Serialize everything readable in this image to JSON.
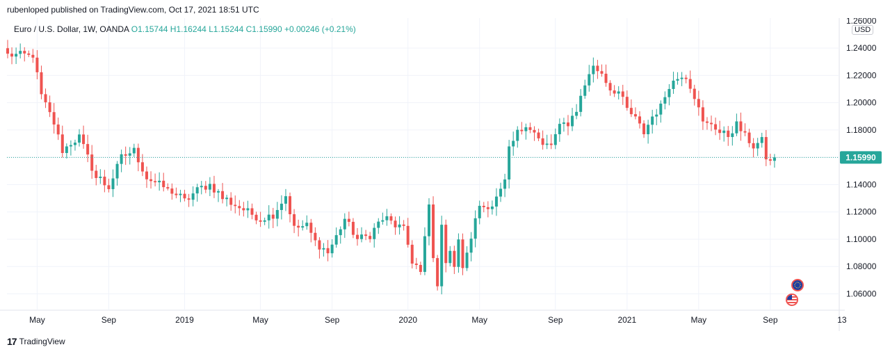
{
  "header": {
    "published": "rubenloped published on TradingView.com, Oct 17, 2021 18:51 UTC"
  },
  "legend": {
    "symbol": "Euro / U.S. Dollar, 1W, OANDA",
    "open": "O1.15744",
    "high": "H1.16244",
    "low": "L1.15244",
    "close": "C1.15990",
    "change": "+0.00246 (+0.21%)"
  },
  "price_axis": {
    "currency": "USD",
    "current_price": "1.15990",
    "top_label": "1.26000"
  },
  "footer": {
    "brand": "TradingView",
    "logo": "17"
  },
  "colors": {
    "up": "#26a69a",
    "down": "#ef5350",
    "price_line": "#26a69a",
    "grid": "#f0f3fa"
  },
  "chart_data": {
    "type": "candlestick",
    "timeframe": "1W",
    "y_ticks": [
      "1.24000",
      "1.22000",
      "1.20000",
      "1.18000",
      "1.16000",
      "1.14000",
      "1.12000",
      "1.10000",
      "1.08000",
      "1.06000"
    ],
    "x_ticks": [
      "May",
      "Sep",
      "2019",
      "May",
      "Sep",
      "2020",
      "May",
      "Sep",
      "2021",
      "May",
      "Sep",
      "13"
    ],
    "ylim": [
      1.048,
      1.262
    ],
    "anchors": [
      [
        0,
        1.235
      ],
      [
        6,
        1.235
      ],
      [
        8,
        1.205
      ],
      [
        11,
        1.185
      ],
      [
        13,
        1.165
      ],
      [
        17,
        1.175
      ],
      [
        19,
        1.16
      ],
      [
        21,
        1.145
      ],
      [
        24,
        1.138
      ],
      [
        27,
        1.16
      ],
      [
        30,
        1.165
      ],
      [
        33,
        1.145
      ],
      [
        36,
        1.14
      ],
      [
        39,
        1.135
      ],
      [
        42,
        1.128
      ],
      [
        45,
        1.136
      ],
      [
        48,
        1.14
      ],
      [
        51,
        1.13
      ],
      [
        54,
        1.125
      ],
      [
        57,
        1.12
      ],
      [
        60,
        1.115
      ],
      [
        63,
        1.118
      ],
      [
        66,
        1.132
      ],
      [
        68,
        1.108
      ],
      [
        71,
        1.11
      ],
      [
        73,
        1.098
      ],
      [
        76,
        1.09
      ],
      [
        78,
        1.102
      ],
      [
        80,
        1.115
      ],
      [
        83,
        1.1
      ],
      [
        86,
        1.103
      ],
      [
        88,
        1.112
      ],
      [
        90,
        1.115
      ],
      [
        92,
        1.11
      ],
      [
        94,
        1.108
      ],
      [
        96,
        1.084
      ],
      [
        97,
        1.082
      ],
      [
        98,
        1.075
      ],
      [
        99,
        1.1
      ],
      [
        100,
        1.125
      ],
      [
        101,
        1.085
      ],
      [
        102,
        1.068
      ],
      [
        103,
        1.108
      ],
      [
        104,
        1.085
      ],
      [
        105,
        1.093
      ],
      [
        106,
        1.08
      ],
      [
        107,
        1.098
      ],
      [
        108,
        1.08
      ],
      [
        109,
        1.088
      ],
      [
        110,
        1.102
      ],
      [
        112,
        1.125
      ],
      [
        115,
        1.125
      ],
      [
        117,
        1.135
      ],
      [
        118,
        1.142
      ],
      [
        119,
        1.165
      ],
      [
        121,
        1.178
      ],
      [
        123,
        1.185
      ],
      [
        125,
        1.178
      ],
      [
        127,
        1.168
      ],
      [
        129,
        1.17
      ],
      [
        131,
        1.182
      ],
      [
        133,
        1.185
      ],
      [
        135,
        1.195
      ],
      [
        137,
        1.213
      ],
      [
        138,
        1.222
      ],
      [
        139,
        1.226
      ],
      [
        141,
        1.222
      ],
      [
        143,
        1.21
      ],
      [
        145,
        1.208
      ],
      [
        147,
        1.195
      ],
      [
        149,
        1.188
      ],
      [
        151,
        1.178
      ],
      [
        153,
        1.19
      ],
      [
        155,
        1.197
      ],
      [
        157,
        1.213
      ],
      [
        159,
        1.218
      ],
      [
        161,
        1.22
      ],
      [
        163,
        1.205
      ],
      [
        165,
        1.185
      ],
      [
        167,
        1.186
      ],
      [
        169,
        1.178
      ],
      [
        171,
        1.176
      ],
      [
        173,
        1.184
      ],
      [
        175,
        1.176
      ],
      [
        177,
        1.168
      ],
      [
        179,
        1.172
      ],
      [
        180,
        1.16
      ],
      [
        181,
        1.157
      ],
      [
        182,
        1.1599
      ]
    ],
    "last_candle": {
      "open": 1.15744,
      "high": 1.16244,
      "low": 1.15244,
      "close": 1.1599
    },
    "events": [
      "EU economic event",
      "US economic event"
    ]
  }
}
